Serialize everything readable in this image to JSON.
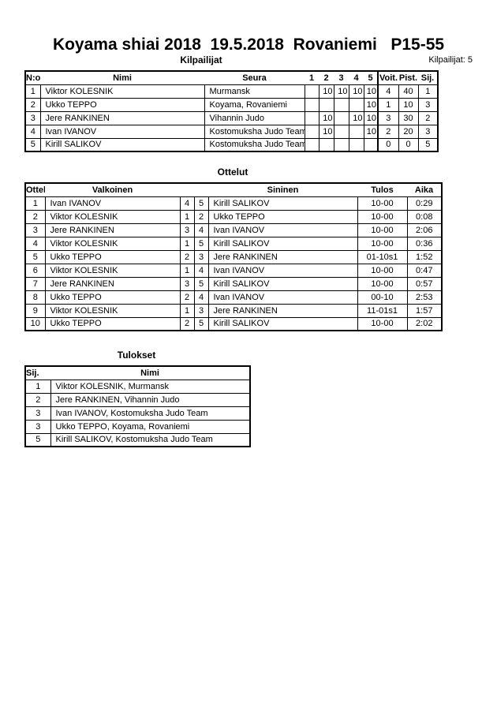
{
  "title": "Koyama shiai 2018  19.5.2018  Rovaniemi   P15-55",
  "competitors": {
    "heading": "Kilpailijat",
    "count_label": "Kilpailijat: 5",
    "columns": [
      "N:o",
      "Nimi",
      "Seura",
      "1",
      "2",
      "3",
      "4",
      "5",
      "Voit.",
      "Pist.",
      "Sij."
    ],
    "rows": [
      [
        "1",
        "Viktor KOLESNIK",
        "Murmansk",
        "",
        "10",
        "10",
        "10",
        "10",
        "4",
        "40",
        "1"
      ],
      [
        "2",
        "Ukko TEPPO",
        "Koyama, Rovaniemi",
        "",
        "",
        "",
        "",
        "10",
        "1",
        "10",
        "3"
      ],
      [
        "3",
        "Jere RANKINEN",
        "Vihannin Judo",
        "",
        "10",
        "",
        "10",
        "10",
        "3",
        "30",
        "2"
      ],
      [
        "4",
        "Ivan IVANOV",
        "Kostomuksha Judo Team",
        "",
        "10",
        "",
        "",
        "10",
        "2",
        "20",
        "3"
      ],
      [
        "5",
        "Kirill SALIKOV",
        "Kostomuksha Judo Team",
        "",
        "",
        "",
        "",
        "",
        "0",
        "0",
        "5"
      ]
    ]
  },
  "matches": {
    "heading": "Ottelut",
    "columns": [
      "Ottelu",
      "Valkoinen",
      "",
      "",
      "Sininen",
      "Tulos",
      "Aika"
    ],
    "rows": [
      [
        "1",
        "Ivan IVANOV",
        "4",
        "5",
        "Kirill SALIKOV",
        "10-00",
        "0:29"
      ],
      [
        "2",
        "Viktor KOLESNIK",
        "1",
        "2",
        "Ukko TEPPO",
        "10-00",
        "0:08"
      ],
      [
        "3",
        "Jere RANKINEN",
        "3",
        "4",
        "Ivan IVANOV",
        "10-00",
        "2:06"
      ],
      [
        "4",
        "Viktor KOLESNIK",
        "1",
        "5",
        "Kirill SALIKOV",
        "10-00",
        "0:36"
      ],
      [
        "5",
        "Ukko TEPPO",
        "2",
        "3",
        "Jere RANKINEN",
        "01-10s1",
        "1:52"
      ],
      [
        "6",
        "Viktor KOLESNIK",
        "1",
        "4",
        "Ivan IVANOV",
        "10-00",
        "0:47"
      ],
      [
        "7",
        "Jere RANKINEN",
        "3",
        "5",
        "Kirill SALIKOV",
        "10-00",
        "0:57"
      ],
      [
        "8",
        "Ukko TEPPO",
        "2",
        "4",
        "Ivan IVANOV",
        "00-10",
        "2:53"
      ],
      [
        "9",
        "Viktor KOLESNIK",
        "1",
        "3",
        "Jere RANKINEN",
        "11-01s1",
        "1:57"
      ],
      [
        "10",
        "Ukko TEPPO",
        "2",
        "5",
        "Kirill SALIKOV",
        "10-00",
        "2:02"
      ]
    ]
  },
  "results": {
    "heading": "Tulokset",
    "columns": [
      "Sij.",
      "Nimi"
    ],
    "rows": [
      [
        "1",
        "Viktor KOLESNIK, Murmansk"
      ],
      [
        "2",
        "Jere RANKINEN, Vihannin Judo"
      ],
      [
        "3",
        "Ivan IVANOV, Kostomuksha Judo Team"
      ],
      [
        "3",
        "Ukko TEPPO, Koyama, Rovaniemi"
      ],
      [
        "5",
        "Kirill SALIKOV, Kostomuksha Judo Team"
      ]
    ]
  }
}
